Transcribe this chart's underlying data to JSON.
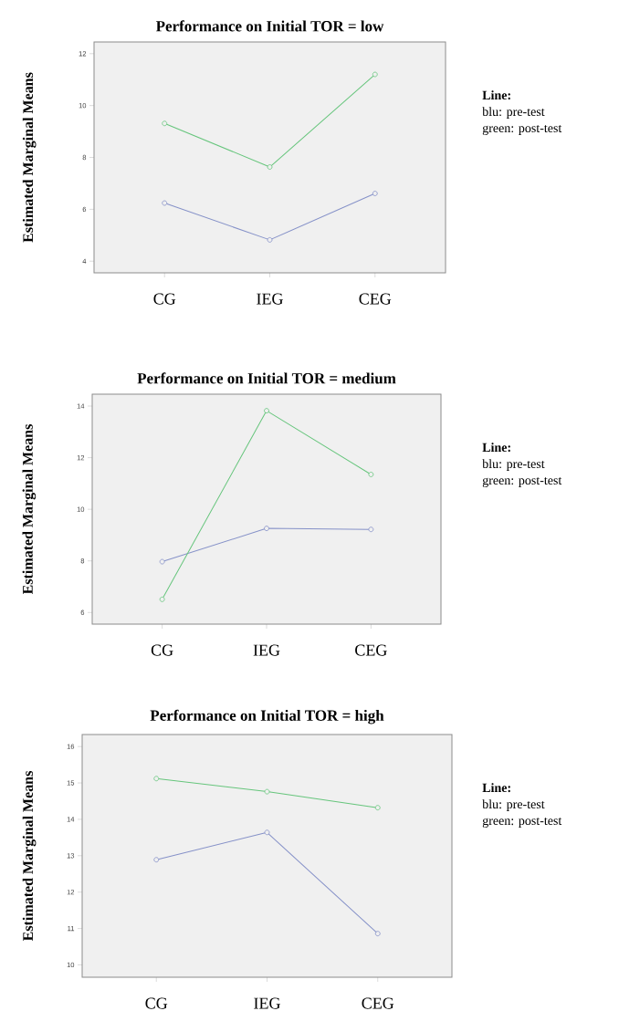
{
  "chart_data": [
    {
      "type": "line",
      "title": "Performance on Initial TOR = low",
      "ylabel": "Estimated Marginal Means",
      "categories": [
        "CG",
        "IEG",
        "CEG"
      ],
      "series": [
        {
          "color": "#8591c8",
          "values": [
            6.24,
            4.82,
            6.61
          ]
        },
        {
          "color": "#66c57c",
          "values": [
            9.31,
            7.63,
            11.2
          ]
        }
      ],
      "ylim": [
        3.55,
        12.45
      ],
      "yticks": [
        4,
        6,
        8,
        10,
        12
      ],
      "marker": "circle",
      "line_style": "solid",
      "annotations": [
        "Line:",
        "blu: pre-test",
        "green: post-test"
      ]
    },
    {
      "type": "line",
      "title": "Performance on Initial TOR = medium",
      "ylabel": "Estimated Marginal Means",
      "categories": [
        "CG",
        "IEG",
        "CEG"
      ],
      "series": [
        {
          "color": "#8591c8",
          "values": [
            7.97,
            9.26,
            9.22
          ]
        },
        {
          "color": "#66c57c",
          "values": [
            6.51,
            13.82,
            11.35
          ]
        }
      ],
      "ylim": [
        5.55,
        14.46
      ],
      "yticks": [
        6,
        8,
        10,
        12,
        14
      ],
      "marker": "circle",
      "line_style": "solid",
      "annotations": [
        "Line:",
        "blu: pre-test",
        "green: post-test"
      ]
    },
    {
      "type": "line",
      "title": "Performance on Initial TOR = high",
      "ylabel": "Estimated Marginal Means",
      "categories": [
        "CG",
        "IEG",
        "CEG"
      ],
      "series": [
        {
          "color": "#8591c8",
          "values": [
            12.89,
            13.64,
            10.86
          ]
        },
        {
          "color": "#66c57c",
          "values": [
            15.12,
            14.76,
            14.32
          ]
        }
      ],
      "ylim": [
        9.66,
        16.33
      ],
      "yticks": [
        10,
        11,
        12,
        13,
        14,
        15,
        16
      ],
      "marker": "circle",
      "line_style": "solid",
      "annotations": [
        "Line:",
        "blu: pre-test",
        "green: post-test"
      ]
    }
  ]
}
